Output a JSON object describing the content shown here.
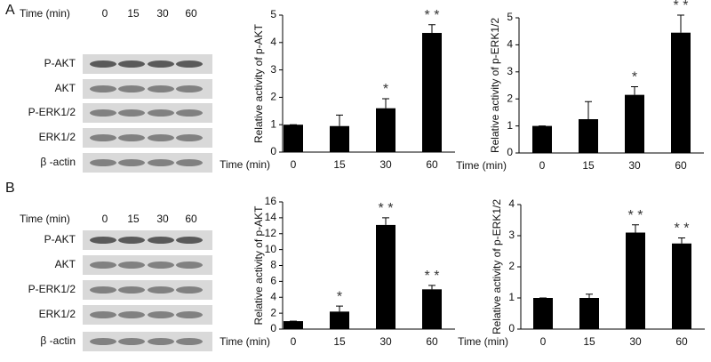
{
  "panel_labels": [
    "A",
    "B"
  ],
  "blots": [
    {
      "header": "Time (min)",
      "times": [
        "0",
        "15",
        "30",
        "60"
      ],
      "rows": [
        "P-AKT",
        "AKT",
        "P-ERK1/2",
        "ERK1/2",
        "β -actin"
      ]
    },
    {
      "header": "Time (min)",
      "times": [
        "0",
        "15",
        "30",
        "60"
      ],
      "rows": [
        "P-AKT",
        "AKT",
        "P-ERK1/2",
        "ERK1/2",
        "β -actin"
      ]
    }
  ],
  "chart_data": [
    {
      "type": "bar",
      "y_label": "Relative activity of p-AKT",
      "x_label": "Time (min)",
      "categories": [
        "0",
        "15",
        "30",
        "60"
      ],
      "values": [
        1,
        0.95,
        1.6,
        4.35
      ],
      "errors": [
        0,
        0.4,
        0.35,
        0.3
      ],
      "annotations": [
        null,
        null,
        "*",
        "* *"
      ],
      "color": "#000000",
      "ylim": [
        0,
        5
      ],
      "yticks": [
        0,
        1,
        2,
        3,
        4,
        5
      ]
    },
    {
      "type": "bar",
      "y_label": "Relative activity of p-ERK1/2",
      "x_label": "Time (min)",
      "categories": [
        "0",
        "15",
        "30",
        "60"
      ],
      "values": [
        1,
        1.25,
        2.15,
        4.45
      ],
      "errors": [
        0,
        0.65,
        0.3,
        0.65
      ],
      "annotations": [
        null,
        null,
        "*",
        "* *"
      ],
      "color": "#000000",
      "ylim": [
        0,
        5
      ],
      "yticks": [
        0,
        1,
        2,
        3,
        4,
        5
      ]
    },
    {
      "type": "bar",
      "y_label": "Relative activity of p-AKT",
      "x_label": "Time (min)",
      "categories": [
        "0",
        "15",
        "30",
        "60"
      ],
      "values": [
        1,
        2.2,
        13.1,
        5
      ],
      "errors": [
        0,
        0.7,
        0.9,
        0.5
      ],
      "annotations": [
        null,
        "*",
        "* *",
        "* *"
      ],
      "color": "#000000",
      "ylim": [
        0,
        16
      ],
      "yticks": [
        0,
        2,
        4,
        6,
        8,
        10,
        12,
        14,
        16
      ]
    },
    {
      "type": "bar",
      "y_label": "Relative activity of p-ERK1/2",
      "x_label": "Time (min)",
      "categories": [
        "0",
        "15",
        "30",
        "60"
      ],
      "values": [
        1,
        1,
        3.1,
        2.75
      ],
      "errors": [
        0,
        0.12,
        0.25,
        0.18
      ],
      "annotations": [
        null,
        null,
        "* *",
        "* *"
      ],
      "color": "#000000",
      "ylim": [
        0,
        4
      ],
      "yticks": [
        0,
        1,
        2,
        3,
        4
      ]
    }
  ]
}
